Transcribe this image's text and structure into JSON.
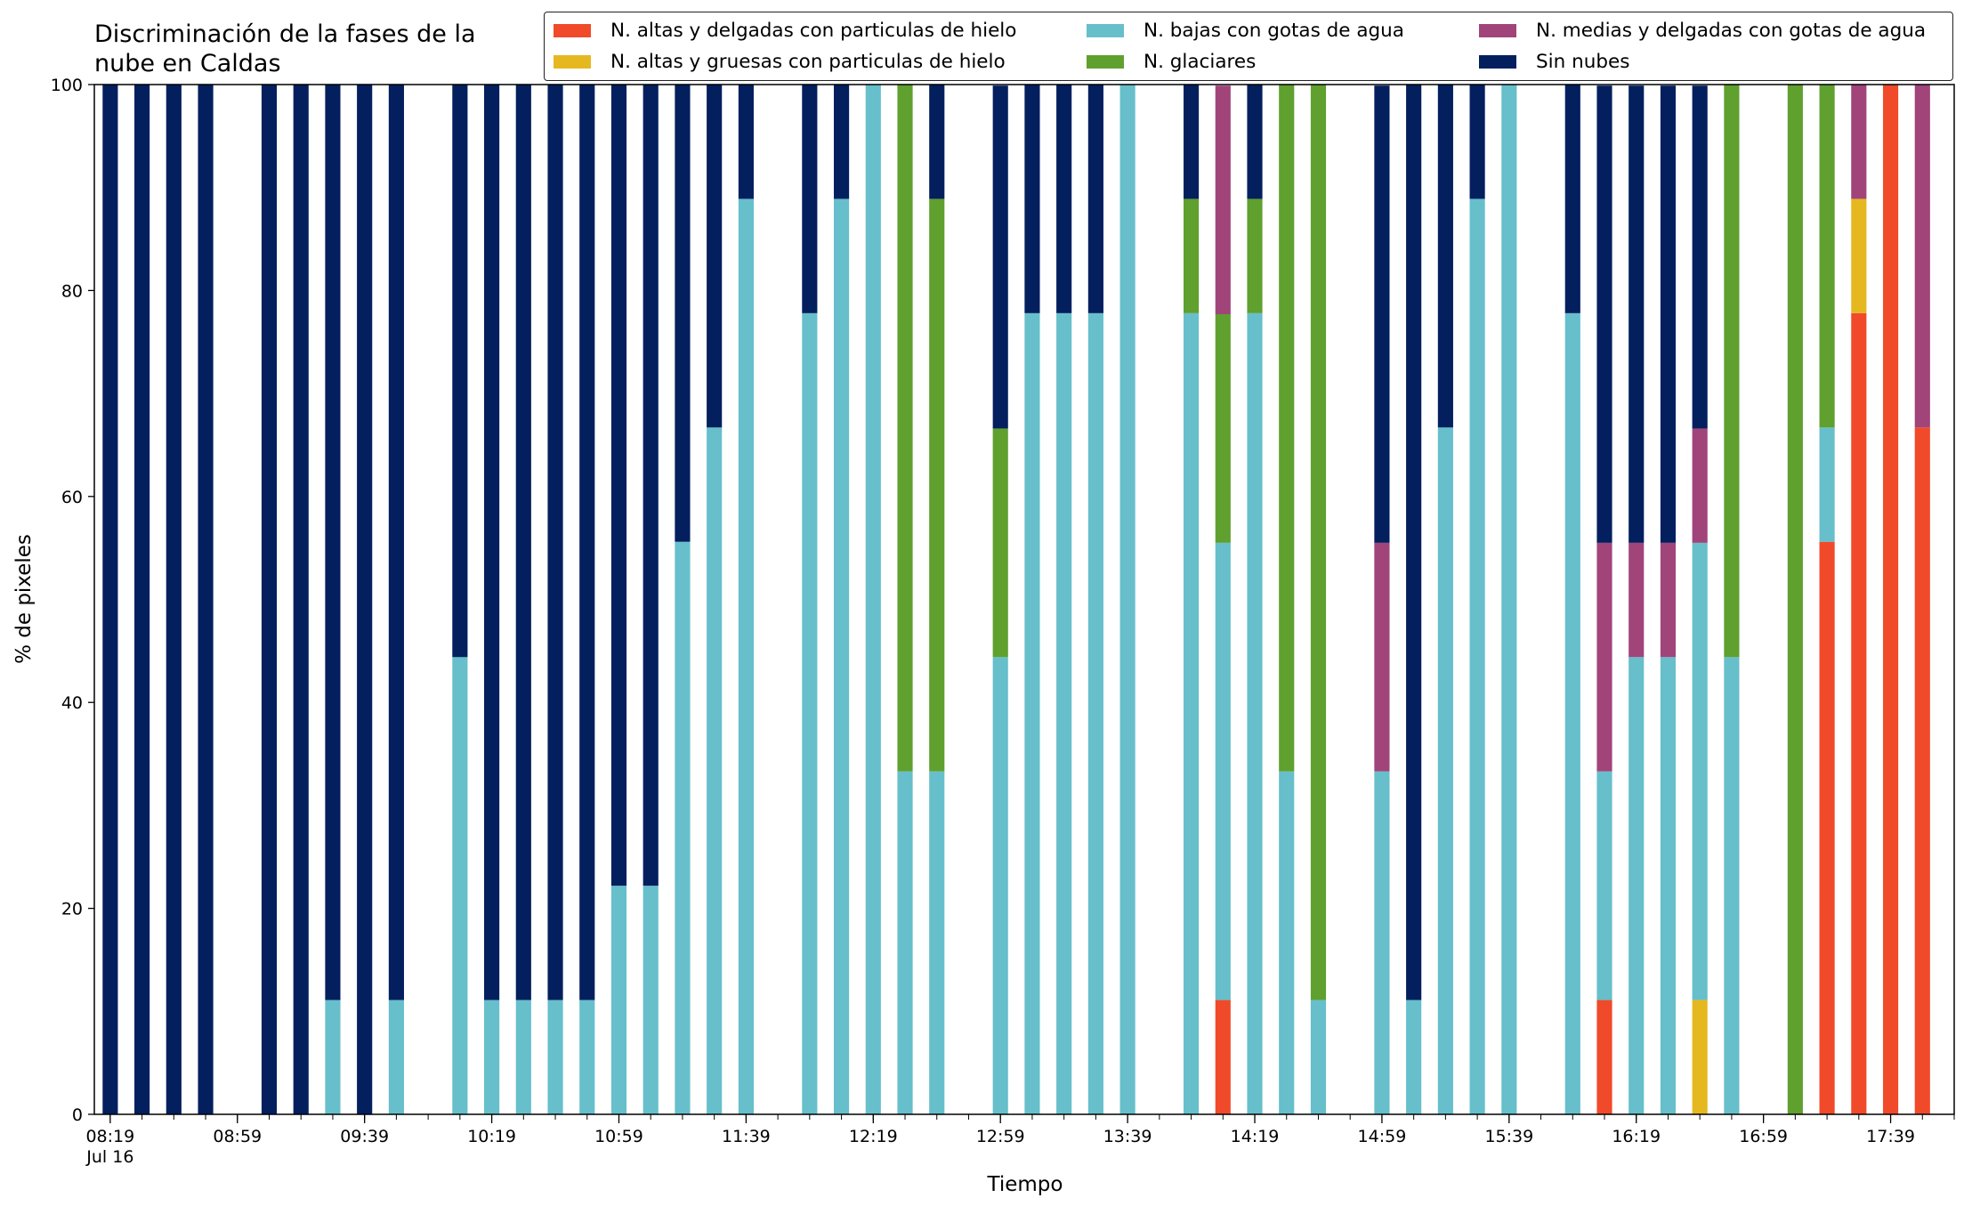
{
  "chart_data": {
    "type": "bar",
    "stacked": true,
    "title": "Discriminación de la fases de la nube en Caldas",
    "title_lines": [
      "Discriminación de la fases de la",
      "nube en Caldas"
    ],
    "xlabel": "Tiempo",
    "ylabel": "% de pixeles",
    "ylim": [
      0,
      100
    ],
    "y_ticks": [
      0,
      20,
      40,
      60,
      80,
      100
    ],
    "x_range": [
      "08:14",
      "17:59"
    ],
    "x_tick_labels": [
      "08:19",
      "08:59",
      "09:39",
      "10:19",
      "10:59",
      "11:39",
      "12:19",
      "12:59",
      "13:39",
      "14:19",
      "14:59",
      "15:39",
      "16:19",
      "16:59",
      "17:39"
    ],
    "x_date_label": "Jul 16",
    "grid": false,
    "legend_position": "top-right",
    "times": [
      "08:19",
      "08:29",
      "08:39",
      "08:49",
      "09:09",
      "09:19",
      "09:29",
      "09:39",
      "09:49",
      "10:09",
      "10:19",
      "10:29",
      "10:39",
      "10:49",
      "10:59",
      "11:09",
      "11:19",
      "11:29",
      "11:39",
      "11:59",
      "12:09",
      "12:19",
      "12:29",
      "12:39",
      "12:59",
      "13:09",
      "13:19",
      "13:29",
      "13:39",
      "13:59",
      "14:09",
      "14:19",
      "14:29",
      "14:39",
      "14:59",
      "15:09",
      "15:19",
      "15:29",
      "15:39",
      "15:59",
      "16:09",
      "16:19",
      "16:29",
      "16:39",
      "16:49",
      "17:09",
      "17:19",
      "17:29",
      "17:39",
      "17:49"
    ],
    "series": [
      {
        "name": "N. altas y delgadas con particulas de hielo",
        "color": "#f04a2a",
        "values": [
          0,
          0,
          0,
          0,
          0,
          0,
          0,
          0,
          0,
          0,
          0,
          0,
          0,
          0,
          0,
          0,
          0,
          0,
          0,
          0,
          0,
          0,
          0,
          0,
          0,
          0,
          0,
          0,
          0,
          0,
          11.1,
          0,
          0,
          0,
          0,
          0,
          0,
          0,
          0,
          0,
          11.1,
          0,
          0,
          0,
          0,
          0,
          55.6,
          77.8,
          100,
          66.7
        ]
      },
      {
        "name": "N. altas y gruesas con particulas de hielo",
        "color": "#e6b820",
        "values": [
          0,
          0,
          0,
          0,
          0,
          0,
          0,
          0,
          0,
          0,
          0,
          0,
          0,
          0,
          0,
          0,
          0,
          0,
          0,
          0,
          0,
          0,
          0,
          0,
          0,
          0,
          0,
          0,
          0,
          0,
          0,
          0,
          0,
          0,
          0,
          0,
          0,
          0,
          0,
          0,
          0,
          0,
          0,
          11.1,
          0,
          0,
          0,
          11.1,
          0,
          0
        ]
      },
      {
        "name": "N. bajas con gotas de agua",
        "color": "#66bfcb",
        "values": [
          0,
          0,
          0,
          0,
          0,
          0,
          11.1,
          0,
          11.1,
          44.4,
          11.1,
          11.1,
          11.1,
          11.1,
          22.2,
          22.2,
          55.6,
          66.7,
          88.9,
          77.8,
          88.9,
          100,
          33.3,
          33.3,
          44.4,
          77.8,
          77.8,
          77.8,
          100,
          77.8,
          44.4,
          77.8,
          33.3,
          11.1,
          33.3,
          11.1,
          66.7,
          88.9,
          100,
          77.8,
          22.2,
          44.4,
          44.4,
          44.4,
          44.4,
          0,
          11.1,
          0,
          0,
          0
        ]
      },
      {
        "name": "N. glaciares",
        "color": "#5fa02e",
        "values": [
          0,
          0,
          0,
          0,
          0,
          0,
          0,
          0,
          0,
          0,
          0,
          0,
          0,
          0,
          0,
          0,
          0,
          0,
          0,
          0,
          0,
          0,
          66.7,
          55.6,
          22.2,
          0,
          0,
          0,
          0,
          11.1,
          22.2,
          11.1,
          66.7,
          88.9,
          0,
          0,
          0,
          0,
          0,
          0,
          0,
          0,
          0,
          0,
          55.6,
          100,
          33.3,
          0,
          0,
          0
        ]
      },
      {
        "name": "N. medias y delgadas con gotas de agua",
        "color": "#a1447a",
        "values": [
          0,
          0,
          0,
          0,
          0,
          0,
          0,
          0,
          0,
          0,
          0,
          0,
          0,
          0,
          0,
          0,
          0,
          0,
          0,
          0,
          0,
          0,
          0,
          0,
          0,
          0,
          0,
          0,
          0,
          0,
          22.2,
          0,
          0,
          0,
          22.2,
          0,
          0,
          0,
          0,
          0,
          22.2,
          11.1,
          11.1,
          11.1,
          0,
          0,
          0,
          11.1,
          0,
          33.3
        ]
      },
      {
        "name": "Sin nubes",
        "color": "#031f5e",
        "values": [
          100,
          100,
          100,
          100,
          100,
          100,
          88.9,
          100,
          88.9,
          55.6,
          88.9,
          88.9,
          88.9,
          88.9,
          77.8,
          77.8,
          44.4,
          33.3,
          11.1,
          22.2,
          11.1,
          0,
          0,
          11.1,
          33.3,
          22.2,
          22.2,
          22.2,
          0,
          11.1,
          0,
          11.1,
          0,
          0,
          44.4,
          88.9,
          33.3,
          11.1,
          0,
          22.2,
          44.4,
          44.4,
          44.4,
          33.3,
          0,
          0,
          0,
          0,
          0,
          0
        ]
      }
    ],
    "legend_layout": [
      [
        0,
        1
      ],
      [
        2,
        3
      ],
      [
        4,
        5
      ]
    ]
  }
}
